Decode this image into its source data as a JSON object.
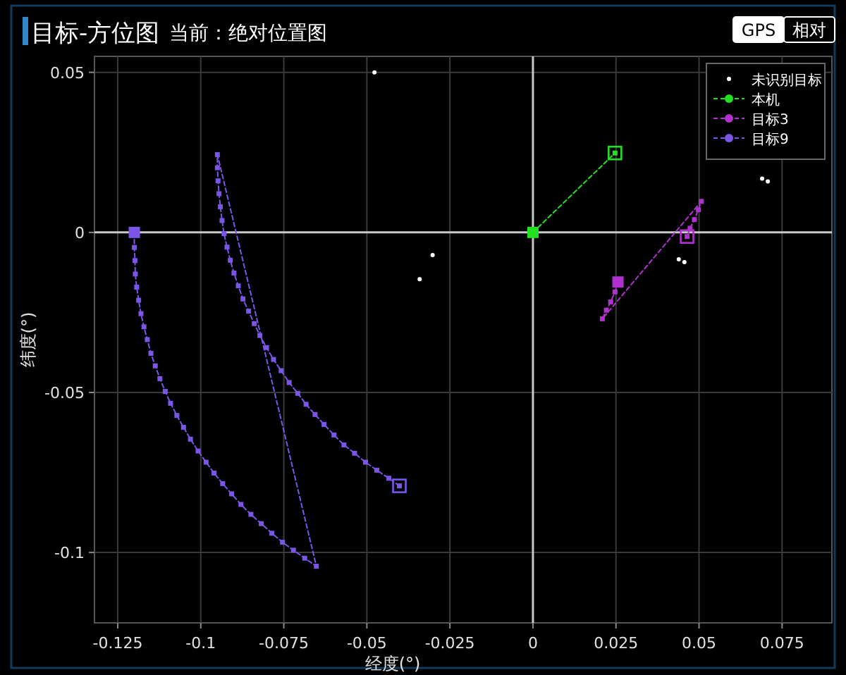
{
  "chart_data": {
    "type": "scatter",
    "title": "目标-方位图",
    "subtitle": "当前：绝对位置图",
    "annotations": [
      "GPS",
      "相对"
    ],
    "xlabel": "经度(°)",
    "ylabel": "纬度(°)",
    "xlim": [
      -0.132,
      0.09
    ],
    "ylim": [
      -0.122,
      0.055
    ],
    "xticks": [
      -0.125,
      -0.1,
      -0.075,
      -0.05,
      -0.025,
      0,
      0.025,
      0.05,
      0.075
    ],
    "yticks": [
      -0.1,
      -0.05,
      0,
      0.05
    ],
    "grid": true,
    "legend": "top right",
    "series": [
      {
        "name": "未识别目标",
        "type": "scatter",
        "color": "#ffffff",
        "marker": "circle",
        "x": [
          -0.0477,
          -0.0302,
          -0.0341,
          0.069,
          0.0707,
          0.0439,
          0.0456
        ],
        "values": [
          0.05,
          -0.0071,
          -0.0146,
          0.0168,
          0.0159,
          -0.0084,
          -0.0093
        ]
      },
      {
        "name": "本机",
        "type": "line",
        "color": "#22e022",
        "marker": "square",
        "line_style": "dashed",
        "x": [
          0,
          0.0247
        ],
        "values": [
          0,
          0.0248
        ]
      },
      {
        "name": "目标3",
        "type": "line",
        "color": "#b030d0",
        "marker": "square",
        "line_style": "dashed",
        "x": [
          0.0256,
          0.0247,
          0.0234,
          0.0221,
          0.0209,
          0.0507,
          0.0498,
          0.0486,
          0.0473,
          0.0464
        ],
        "values": [
          -0.0155,
          -0.0186,
          -0.0217,
          -0.0243,
          -0.027,
          0.0097,
          0.0071,
          0.004,
          0.0013,
          -0.0013
        ]
      },
      {
        "name": "目标9",
        "type": "line",
        "color": "#7b55e8",
        "marker": "square",
        "line_style": "dashed",
        "x": [
          -0.12,
          -0.12,
          -0.1198,
          -0.1197,
          -0.1193,
          -0.1187,
          -0.118,
          -0.1171,
          -0.1161,
          -0.115,
          -0.1137,
          -0.1123,
          -0.1107,
          -0.1091,
          -0.1072,
          -0.1052,
          -0.1031,
          -0.1008,
          -0.0984,
          -0.096,
          -0.0934,
          -0.0907,
          -0.0879,
          -0.0849,
          -0.0818,
          -0.0786,
          -0.0754,
          -0.0721,
          -0.0687,
          -0.0652,
          -0.095,
          -0.095,
          -0.0948,
          -0.0945,
          -0.0941,
          -0.0936,
          -0.093,
          -0.0921,
          -0.0911,
          -0.09,
          -0.0887,
          -0.0873,
          -0.0856,
          -0.0839,
          -0.0822,
          -0.0802,
          -0.0781,
          -0.0758,
          -0.0734,
          -0.0708,
          -0.0683,
          -0.0656,
          -0.0629,
          -0.0599,
          -0.0569,
          -0.0537,
          -0.0504,
          -0.047,
          -0.0434,
          -0.0402
        ],
        "values": [
          0,
          -0.0047,
          -0.0088,
          -0.013,
          -0.0171,
          -0.0212,
          -0.0254,
          -0.0295,
          -0.0335,
          -0.0378,
          -0.0417,
          -0.0457,
          -0.0497,
          -0.0534,
          -0.0572,
          -0.0609,
          -0.0646,
          -0.0683,
          -0.0718,
          -0.0752,
          -0.0785,
          -0.0817,
          -0.085,
          -0.0881,
          -0.091,
          -0.094,
          -0.0968,
          -0.0993,
          -0.1018,
          -0.1043,
          0.0243,
          0.0202,
          0.0161,
          0.0121,
          0.008,
          0.0037,
          -0.0004,
          -0.0046,
          -0.0087,
          -0.0127,
          -0.0167,
          -0.0208,
          -0.0246,
          -0.0285,
          -0.0322,
          -0.036,
          -0.0397,
          -0.0432,
          -0.0469,
          -0.0503,
          -0.0537,
          -0.0569,
          -0.06,
          -0.0633,
          -0.0664,
          -0.069,
          -0.0718,
          -0.0743,
          -0.0768,
          -0.0792
        ]
      }
    ]
  }
}
